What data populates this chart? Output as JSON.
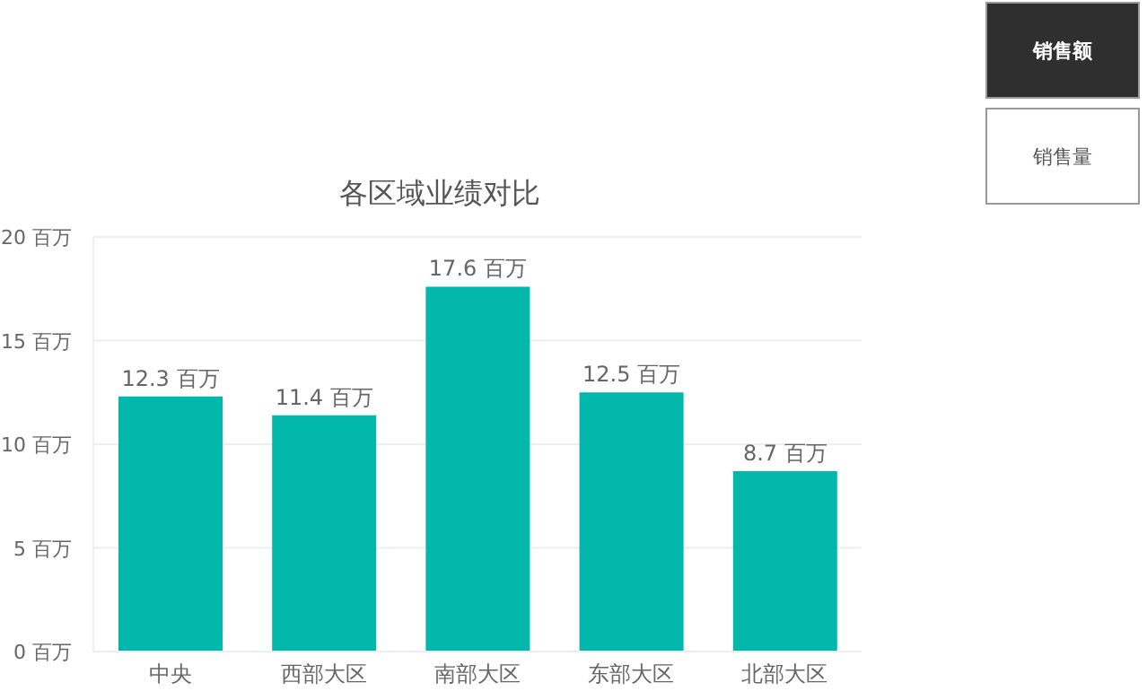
{
  "chart_data": {
    "type": "bar",
    "title": "各区域业绩对比",
    "categories": [
      "中央",
      "西部大区",
      "南部大区",
      "东部大区",
      "北部大区"
    ],
    "values": [
      12.3,
      11.4,
      17.6,
      12.5,
      8.7
    ],
    "value_labels": [
      "12.3 百万",
      "11.4 百万",
      "17.6 百万",
      "12.5 百万",
      "8.7 百万"
    ],
    "color": "#01b8aa",
    "ylim": [
      0,
      20
    ],
    "yticks": [
      {
        "value": 0,
        "label": "0 百万"
      },
      {
        "value": 5,
        "label": "5 百万"
      },
      {
        "value": 10,
        "label": "10 百万"
      },
      {
        "value": 15,
        "label": "15 百万"
      },
      {
        "value": 20,
        "label": "20 百万"
      }
    ],
    "grid": "y",
    "annotations": [
      "销售额",
      "销售量"
    ]
  }
}
